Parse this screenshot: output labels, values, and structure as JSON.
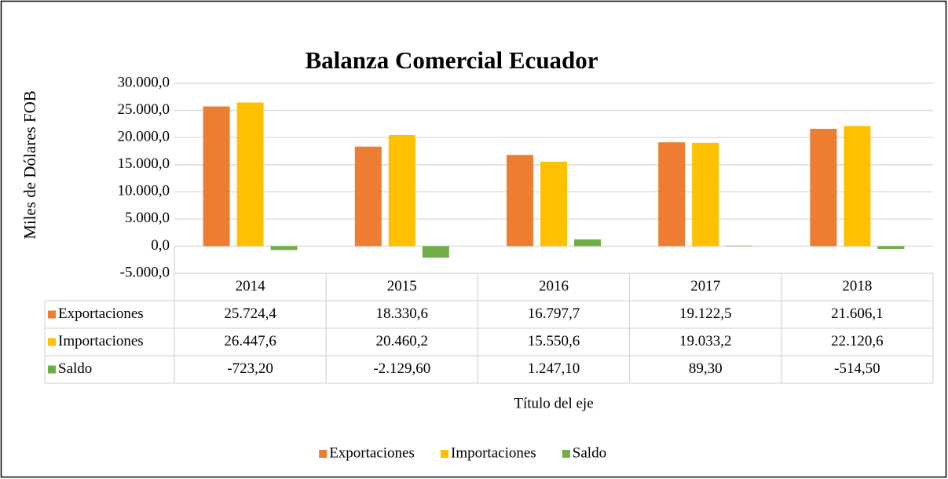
{
  "chart_data": {
    "type": "bar",
    "title": "Balanza Comercial Ecuador",
    "y_label": "Miles de Dólares FOB",
    "x_label": "Título del eje",
    "categories": [
      "2014",
      "2015",
      "2016",
      "2017",
      "2018"
    ],
    "series": [
      {
        "name": "Exportaciones",
        "color": "#ED7D31",
        "values": [
          25724.4,
          18330.6,
          16797.7,
          19122.5,
          21606.1
        ],
        "value_labels": [
          "25.724,4",
          "18.330,6",
          "16.797,7",
          "19.122,5",
          "21.606,1"
        ]
      },
      {
        "name": "Importaciones",
        "color": "#FFC000",
        "values": [
          26447.6,
          20460.2,
          15550.6,
          19033.2,
          22120.6
        ],
        "value_labels": [
          "26.447,6",
          "20.460,2",
          "15.550,6",
          "19.033,2",
          "22.120,6"
        ]
      },
      {
        "name": "Saldo",
        "color": "#70AD47",
        "values": [
          -723.2,
          -2129.6,
          1247.1,
          89.3,
          -514.5
        ],
        "value_labels": [
          "-723,20",
          "-2.129,60",
          "1.247,10",
          "89,30",
          "-514,50"
        ]
      }
    ],
    "ylim": [
      -5000,
      30000
    ],
    "yticks": [
      {
        "value": -5000,
        "label": "-5.000,0"
      },
      {
        "value": 0,
        "label": "0,0"
      },
      {
        "value": 5000,
        "label": "5.000,0"
      },
      {
        "value": 10000,
        "label": "10.000,0"
      },
      {
        "value": 15000,
        "label": "15.000,0"
      },
      {
        "value": 20000,
        "label": "20.000,0"
      },
      {
        "value": 25000,
        "label": "25.000,0"
      },
      {
        "value": 30000,
        "label": "30.000,0"
      }
    ],
    "grid": true,
    "legend": "bottom"
  }
}
